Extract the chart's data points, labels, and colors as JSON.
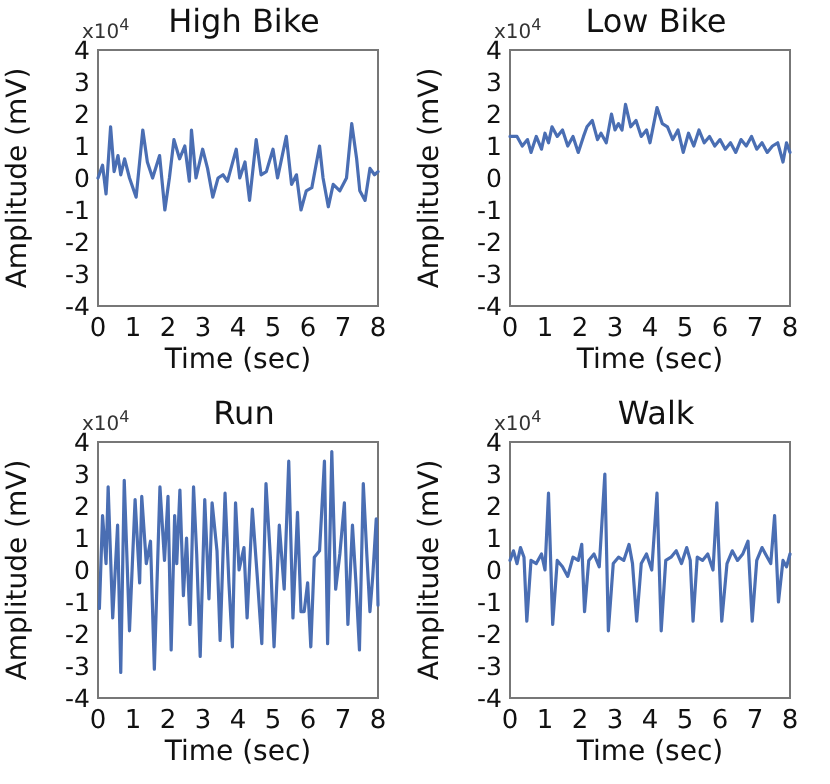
{
  "chart_data": [
    {
      "type": "line",
      "title": "High Bike",
      "xlabel": "Time (sec)",
      "ylabel": "Amplitude (mV)",
      "annotations": [
        "x10$^{4}$"
      ],
      "xlim": [
        0,
        8
      ],
      "ylim": [
        -4,
        4
      ],
      "xticks": [
        0,
        1,
        2,
        3,
        4,
        5,
        6,
        7,
        8
      ],
      "yticks": [
        -4,
        -3,
        -2,
        -1,
        0,
        1,
        2,
        3,
        4
      ],
      "x": [
        0,
        0.13,
        0.23,
        0.36,
        0.46,
        0.57,
        0.65,
        0.76,
        0.9,
        1.09,
        1.28,
        1.41,
        1.56,
        1.76,
        1.91,
        2.04,
        2.17,
        2.33,
        2.48,
        2.61,
        2.67,
        2.8,
        2.99,
        3.13,
        3.28,
        3.43,
        3.57,
        3.7,
        3.95,
        4.05,
        4.2,
        4.33,
        4.52,
        4.66,
        4.81,
        5.0,
        5.13,
        5.38,
        5.53,
        5.67,
        5.8,
        5.95,
        6.11,
        6.33,
        6.43,
        6.58,
        6.72,
        6.91,
        7.1,
        7.25,
        7.39,
        7.48,
        7.63,
        7.77,
        7.9,
        8
      ],
      "series": [
        {
          "color": "#4a6eb3",
          "values": [
            0,
            0.4,
            -0.5,
            1.6,
            0.2,
            0.7,
            0.1,
            0.6,
            0,
            -0.6,
            1.5,
            0.5,
            0,
            0.7,
            -1.0,
            0,
            1.2,
            0.6,
            1.0,
            -0.1,
            1.5,
            0,
            0.9,
            0.3,
            -0.6,
            0,
            0.1,
            -0.1,
            0.9,
            0,
            0.5,
            -0.7,
            1.2,
            0.1,
            0.2,
            0.9,
            0,
            1.3,
            -0.2,
            0.1,
            -1.0,
            -0.4,
            -0.3,
            1.0,
            0,
            -0.9,
            -0.2,
            -0.4,
            0,
            1.7,
            0.6,
            -0.4,
            -0.7,
            0.3,
            0.1,
            0.2
          ]
        }
      ]
    },
    {
      "type": "line",
      "title": "Low Bike",
      "xlabel": "Time (sec)",
      "ylabel": "Amplitude (mV)",
      "annotations": [
        "x10$^{4}$"
      ],
      "xlim": [
        0,
        8
      ],
      "ylim": [
        -4,
        4
      ],
      "xticks": [
        0,
        1,
        2,
        3,
        4,
        5,
        6,
        7,
        8
      ],
      "yticks": [
        -4,
        -3,
        -2,
        -1,
        0,
        1,
        2,
        3,
        4
      ],
      "x": [
        0,
        0.2,
        0.35,
        0.5,
        0.6,
        0.75,
        0.9,
        1.0,
        1.1,
        1.2,
        1.35,
        1.5,
        1.65,
        1.8,
        1.95,
        2.1,
        2.2,
        2.35,
        2.5,
        2.6,
        2.75,
        2.9,
        3.0,
        3.1,
        3.2,
        3.3,
        3.45,
        3.6,
        3.75,
        3.9,
        4.0,
        4.2,
        4.35,
        4.5,
        4.65,
        4.8,
        4.95,
        5.1,
        5.25,
        5.4,
        5.55,
        5.7,
        5.85,
        6.0,
        6.15,
        6.3,
        6.45,
        6.6,
        6.75,
        6.9,
        7.05,
        7.2,
        7.35,
        7.5,
        7.65,
        7.8,
        7.9,
        8
      ],
      "series": [
        {
          "color": "#4a6eb3",
          "values": [
            1.3,
            1.3,
            1.0,
            1.2,
            0.8,
            1.3,
            0.9,
            1.4,
            1.1,
            1.6,
            1.3,
            1.5,
            1.0,
            1.3,
            0.8,
            1.3,
            1.6,
            1.8,
            1.2,
            1.4,
            1.1,
            2.0,
            1.5,
            1.7,
            1.5,
            2.3,
            1.6,
            1.8,
            1.3,
            1.5,
            1.1,
            2.2,
            1.7,
            1.6,
            1.2,
            1.5,
            0.8,
            1.4,
            1.0,
            1.5,
            1.1,
            1.3,
            1.0,
            1.2,
            0.9,
            1.1,
            0.8,
            1.2,
            1.0,
            1.3,
            0.9,
            1.1,
            0.8,
            1.0,
            1.1,
            0.5,
            1.1,
            0.8
          ]
        }
      ]
    },
    {
      "type": "line",
      "title": "Run",
      "xlabel": "Time (sec)",
      "ylabel": "Amplitude (mV)",
      "annotations": [
        "x10$^{4}$"
      ],
      "xlim": [
        0,
        8
      ],
      "ylim": [
        -4,
        4
      ],
      "xticks": [
        0,
        1,
        2,
        3,
        4,
        5,
        6,
        7,
        8
      ],
      "yticks": [
        -4,
        -3,
        -2,
        -1,
        0,
        1,
        2,
        3,
        4
      ],
      "x": [
        0.04,
        0.13,
        0.23,
        0.29,
        0.42,
        0.56,
        0.65,
        0.75,
        0.9,
        1.06,
        1.19,
        1.25,
        1.38,
        1.5,
        1.61,
        1.77,
        1.9,
        2.0,
        2.09,
        2.19,
        2.25,
        2.34,
        2.44,
        2.53,
        2.63,
        2.73,
        2.82,
        2.92,
        3.05,
        3.17,
        3.26,
        3.4,
        3.49,
        3.63,
        3.74,
        3.84,
        3.93,
        4.03,
        4.17,
        4.26,
        4.41,
        4.55,
        4.68,
        4.8,
        4.93,
        5.03,
        5.18,
        5.32,
        5.45,
        5.57,
        5.7,
        5.8,
        5.89,
        5.99,
        6.08,
        6.18,
        6.33,
        6.47,
        6.56,
        6.68,
        6.79,
        6.91,
        7.04,
        7.14,
        7.27,
        7.37,
        7.47,
        7.58,
        7.68,
        7.77,
        7.85,
        7.95,
        8.0
      ],
      "series": [
        {
          "color": "#4a6eb3",
          "values": [
            -1.2,
            1.7,
            0.2,
            2.6,
            -1.5,
            1.4,
            -3.2,
            2.8,
            -1.9,
            2.2,
            -0.4,
            2.3,
            0.2,
            0.9,
            -3.1,
            2.6,
            0.3,
            2.3,
            -2.5,
            1.7,
            0.2,
            2.5,
            -0.8,
            1.0,
            -1.7,
            2.6,
            0.5,
            -2.7,
            2.2,
            -0.9,
            2.1,
            0.6,
            -2.2,
            2.4,
            -0.4,
            -2.4,
            2.1,
            0,
            0.7,
            -1.5,
            1.9,
            -0.2,
            -2.3,
            2.7,
            0.3,
            -2.4,
            1.4,
            -0.6,
            3.4,
            -1.5,
            1.8,
            -1.3,
            -1.3,
            -0.4,
            -2.4,
            0.4,
            0.6,
            3.4,
            -2.3,
            3.7,
            -0.6,
            0.5,
            2.1,
            -1.7,
            1.4,
            -0.4,
            -2.5,
            2.7,
            0.5,
            -1.3,
            -0.2,
            1.6,
            -1.1
          ]
        }
      ]
    },
    {
      "type": "line",
      "title": "Walk",
      "xlabel": "Time (sec)",
      "ylabel": "Amplitude (mV)",
      "annotations": [
        "x10$^{4}$"
      ],
      "xlim": [
        0,
        8
      ],
      "ylim": [
        -4,
        4
      ],
      "xticks": [
        0,
        1,
        2,
        3,
        4,
        5,
        6,
        7,
        8
      ],
      "yticks": [
        -4,
        -3,
        -2,
        -1,
        0,
        1,
        2,
        3,
        4
      ],
      "x": [
        0,
        0.1,
        0.2,
        0.3,
        0.4,
        0.48,
        0.6,
        0.75,
        0.9,
        1.0,
        1.1,
        1.22,
        1.35,
        1.5,
        1.65,
        1.8,
        1.95,
        2.05,
        2.13,
        2.25,
        2.4,
        2.55,
        2.71,
        2.81,
        2.95,
        3.1,
        3.25,
        3.4,
        3.5,
        3.62,
        3.75,
        3.9,
        4.05,
        4.2,
        4.32,
        4.45,
        4.6,
        4.75,
        4.9,
        5.05,
        5.15,
        5.23,
        5.35,
        5.5,
        5.65,
        5.8,
        5.91,
        6.05,
        6.2,
        6.35,
        6.5,
        6.65,
        6.8,
        6.92,
        7.05,
        7.2,
        7.35,
        7.45,
        7.56,
        7.67,
        7.8,
        7.9,
        8
      ],
      "series": [
        {
          "color": "#4a6eb3",
          "values": [
            0.3,
            0.6,
            0.2,
            0.7,
            0.4,
            -1.6,
            0.3,
            0.2,
            0.5,
            0,
            2.4,
            -1.7,
            0.3,
            0.1,
            -0.2,
            0.4,
            0.3,
            0.8,
            -1.3,
            0.3,
            0.5,
            0.1,
            3.0,
            -1.9,
            0.2,
            0.4,
            0.3,
            0.8,
            0.2,
            -1.6,
            0.2,
            0.5,
            0,
            2.4,
            -1.9,
            0.3,
            0.4,
            0.6,
            0.2,
            0.7,
            0.3,
            -1.6,
            0.4,
            0.3,
            0.5,
            0,
            2.1,
            -1.6,
            0.2,
            0.6,
            0.3,
            0.5,
            0.9,
            -1.6,
            0.3,
            0.7,
            0.4,
            0.2,
            1.7,
            -1.0,
            0.3,
            0.1,
            0.5
          ]
        }
      ]
    }
  ]
}
